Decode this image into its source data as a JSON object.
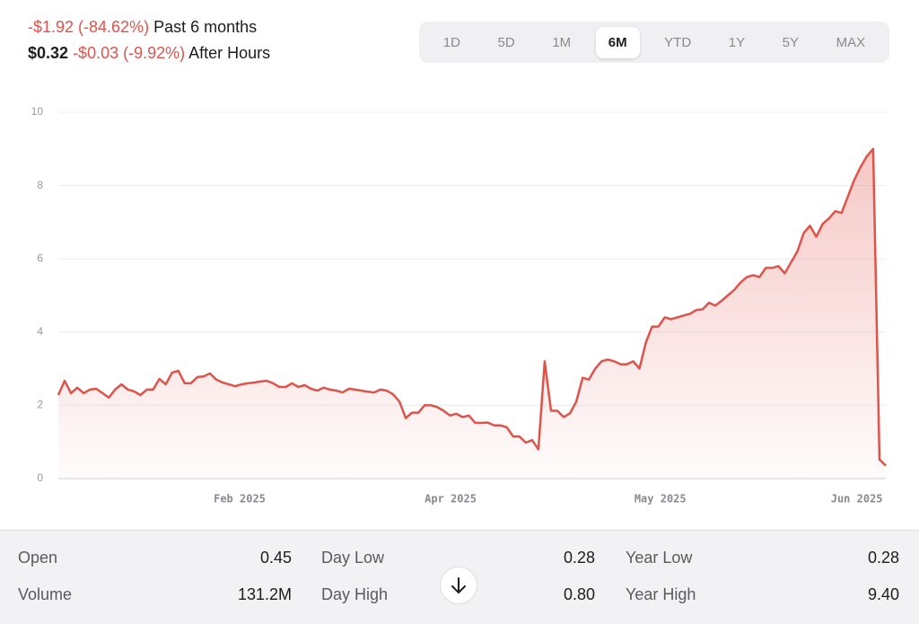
{
  "header": {
    "change": "-$1.92 (-84.62%)",
    "period": "Past 6 months",
    "after_hours_price": "$0.32",
    "after_hours_change": "-$0.03 (-9.92%)",
    "after_hours_label": "After Hours"
  },
  "range_tabs": {
    "options": [
      "1D",
      "5D",
      "1M",
      "6M",
      "YTD",
      "1Y",
      "5Y",
      "MAX"
    ],
    "selected_index": 3
  },
  "chart_data": {
    "type": "area",
    "color": "#e0534a",
    "values": [
      2.28,
      2.67,
      2.33,
      2.48,
      2.33,
      2.43,
      2.45,
      2.33,
      2.21,
      2.43,
      2.57,
      2.43,
      2.38,
      2.28,
      2.43,
      2.43,
      2.72,
      2.57,
      2.89,
      2.94,
      2.6,
      2.6,
      2.77,
      2.79,
      2.87,
      2.7,
      2.62,
      2.57,
      2.52,
      2.57,
      2.6,
      2.62,
      2.65,
      2.67,
      2.6,
      2.5,
      2.5,
      2.6,
      2.5,
      2.55,
      2.45,
      2.4,
      2.48,
      2.43,
      2.4,
      2.35,
      2.45,
      2.43,
      2.4,
      2.37,
      2.35,
      2.43,
      2.4,
      2.3,
      2.1,
      1.65,
      1.8,
      1.8,
      2.0,
      2.0,
      1.95,
      1.85,
      1.72,
      1.77,
      1.68,
      1.72,
      1.52,
      1.52,
      1.53,
      1.45,
      1.45,
      1.4,
      1.15,
      1.15,
      0.98,
      1.05,
      0.8,
      3.2,
      1.85,
      1.85,
      1.68,
      1.78,
      2.1,
      2.75,
      2.7,
      3.0,
      3.2,
      3.25,
      3.2,
      3.12,
      3.12,
      3.2,
      3.0,
      3.7,
      4.15,
      4.15,
      4.4,
      4.35,
      4.4,
      4.45,
      4.5,
      4.6,
      4.62,
      4.8,
      4.72,
      4.85,
      5.0,
      5.15,
      5.35,
      5.5,
      5.55,
      5.5,
      5.75,
      5.75,
      5.8,
      5.6,
      5.9,
      6.2,
      6.7,
      6.9,
      6.6,
      6.95,
      7.1,
      7.3,
      7.25,
      7.7,
      8.15,
      8.5,
      8.8,
      9.0,
      0.52,
      0.35
    ],
    "ylim": [
      0,
      10
    ],
    "yticks": [
      0,
      2,
      4,
      6,
      8,
      10
    ],
    "xlim": [
      0,
      131
    ],
    "xticks": [
      {
        "value": 28.7,
        "label": "Feb 2025"
      },
      {
        "value": 62.1,
        "label": "Apr 2025"
      },
      {
        "value": 95.3,
        "label": "May 2025"
      },
      {
        "value": 126.4,
        "label": "Jun 2025"
      }
    ],
    "grid": true
  },
  "stats": [
    {
      "label": "Open",
      "value": "0.45"
    },
    {
      "label": "Volume",
      "value": "131.2M"
    },
    {
      "label": "Day Low",
      "value": "0.28"
    },
    {
      "label": "Day High",
      "value": "0.80"
    },
    {
      "label": "Year Low",
      "value": "0.28"
    },
    {
      "label": "Year High",
      "value": "9.40"
    }
  ]
}
